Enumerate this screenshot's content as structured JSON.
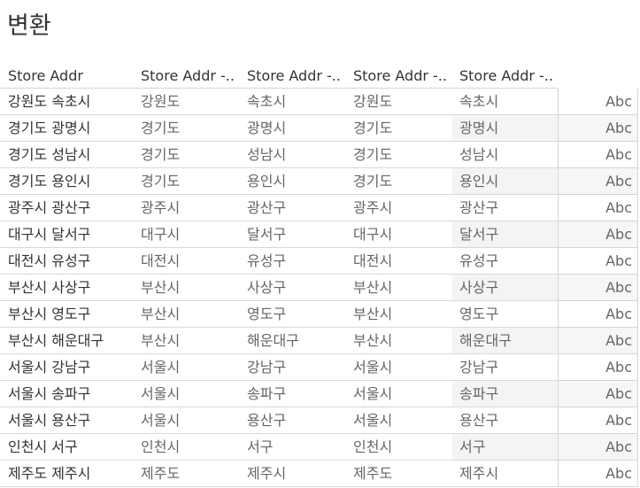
{
  "title": "변환",
  "columns": [
    "Store Addr",
    "Store Addr -..",
    "Store Addr -..",
    "Store Addr -..",
    "Store Addr -.."
  ],
  "rows": [
    {
      "full": "강원도 속초시",
      "c1": "강원도",
      "c2": "속초시",
      "c3": "강원도",
      "c4": "속초시",
      "c5": "Abc"
    },
    {
      "full": "경기도 광명시",
      "c1": "경기도",
      "c2": "광명시",
      "c3": "경기도",
      "c4": "광명시",
      "c5": "Abc"
    },
    {
      "full": "경기도 성남시",
      "c1": "경기도",
      "c2": "성남시",
      "c3": "경기도",
      "c4": "성남시",
      "c5": "Abc"
    },
    {
      "full": "경기도 용인시",
      "c1": "경기도",
      "c2": "용인시",
      "c3": "경기도",
      "c4": "용인시",
      "c5": "Abc"
    },
    {
      "full": "광주시 광산구",
      "c1": "광주시",
      "c2": "광산구",
      "c3": "광주시",
      "c4": "광산구",
      "c5": "Abc"
    },
    {
      "full": "대구시 달서구",
      "c1": "대구시",
      "c2": "달서구",
      "c3": "대구시",
      "c4": "달서구",
      "c5": "Abc"
    },
    {
      "full": "대전시 유성구",
      "c1": "대전시",
      "c2": "유성구",
      "c3": "대전시",
      "c4": "유성구",
      "c5": "Abc"
    },
    {
      "full": "부산시 사상구",
      "c1": "부산시",
      "c2": "사상구",
      "c3": "부산시",
      "c4": "사상구",
      "c5": "Abc"
    },
    {
      "full": "부산시 영도구",
      "c1": "부산시",
      "c2": "영도구",
      "c3": "부산시",
      "c4": "영도구",
      "c5": "Abc"
    },
    {
      "full": "부산시 해운대구",
      "c1": "부산시",
      "c2": "해운대구",
      "c3": "부산시",
      "c4": "해운대구",
      "c5": "Abc"
    },
    {
      "full": "서울시 강남구",
      "c1": "서울시",
      "c2": "강남구",
      "c3": "서울시",
      "c4": "강남구",
      "c5": "Abc"
    },
    {
      "full": "서울시 송파구",
      "c1": "서울시",
      "c2": "송파구",
      "c3": "서울시",
      "c4": "송파구",
      "c5": "Abc"
    },
    {
      "full": "서울시 용산구",
      "c1": "서울시",
      "c2": "용산구",
      "c3": "서울시",
      "c4": "용산구",
      "c5": "Abc"
    },
    {
      "full": "인천시 서구",
      "c1": "인천시",
      "c2": "서구",
      "c3": "인천시",
      "c4": "서구",
      "c5": "Abc"
    },
    {
      "full": "제주도 제주시",
      "c1": "제주도",
      "c2": "제주시",
      "c3": "제주도",
      "c4": "제주시",
      "c5": "Abc"
    }
  ]
}
